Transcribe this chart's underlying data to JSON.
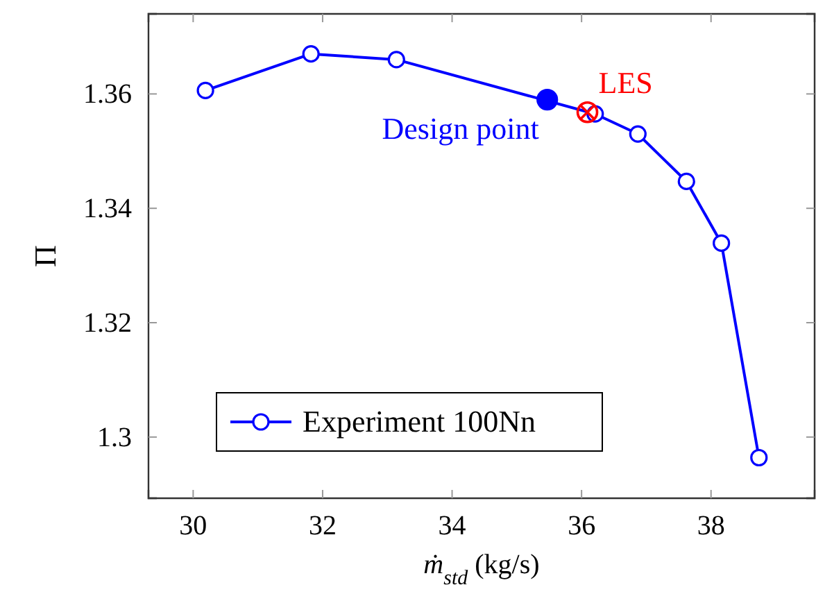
{
  "chart_data": {
    "type": "line",
    "xlabel": "ṁ$_{std}$ (kg/s)",
    "ylabel": "Π",
    "xlim": [
      29.31,
      39.6
    ],
    "xticks": [
      30,
      32,
      34,
      36,
      38
    ],
    "ylim": [
      1.2893,
      1.374
    ],
    "yticks": [
      1.3,
      1.32,
      1.34,
      1.36
    ],
    "grid": false,
    "legend": "bottom left",
    "series": [
      {
        "name": "Experiment 100Nn",
        "marker": "circle",
        "color": "#0000ff",
        "x": [
          30.19,
          31.82,
          33.14,
          36.21,
          36.87,
          37.62,
          38.16,
          38.74
        ],
        "values": [
          1.3606,
          1.367,
          1.366,
          1.3565,
          1.353,
          1.3447,
          1.3339,
          1.2964
        ]
      },
      {
        "type": "scatter",
        "marker": "circle",
        "color": "#0000ff",
        "x": [
          35.47
        ],
        "values": [
          1.359
        ]
      },
      {
        "type": "scatter",
        "marker": "cross",
        "color": "#ff0000",
        "x": [
          36.09
        ],
        "values": [
          1.3568
        ]
      }
    ],
    "annotations": [
      {
        "text": "Design point",
        "x": 35.47,
        "y": 1.359
      },
      {
        "text": "LES",
        "x": 36.09,
        "y": 1.3568
      }
    ]
  }
}
